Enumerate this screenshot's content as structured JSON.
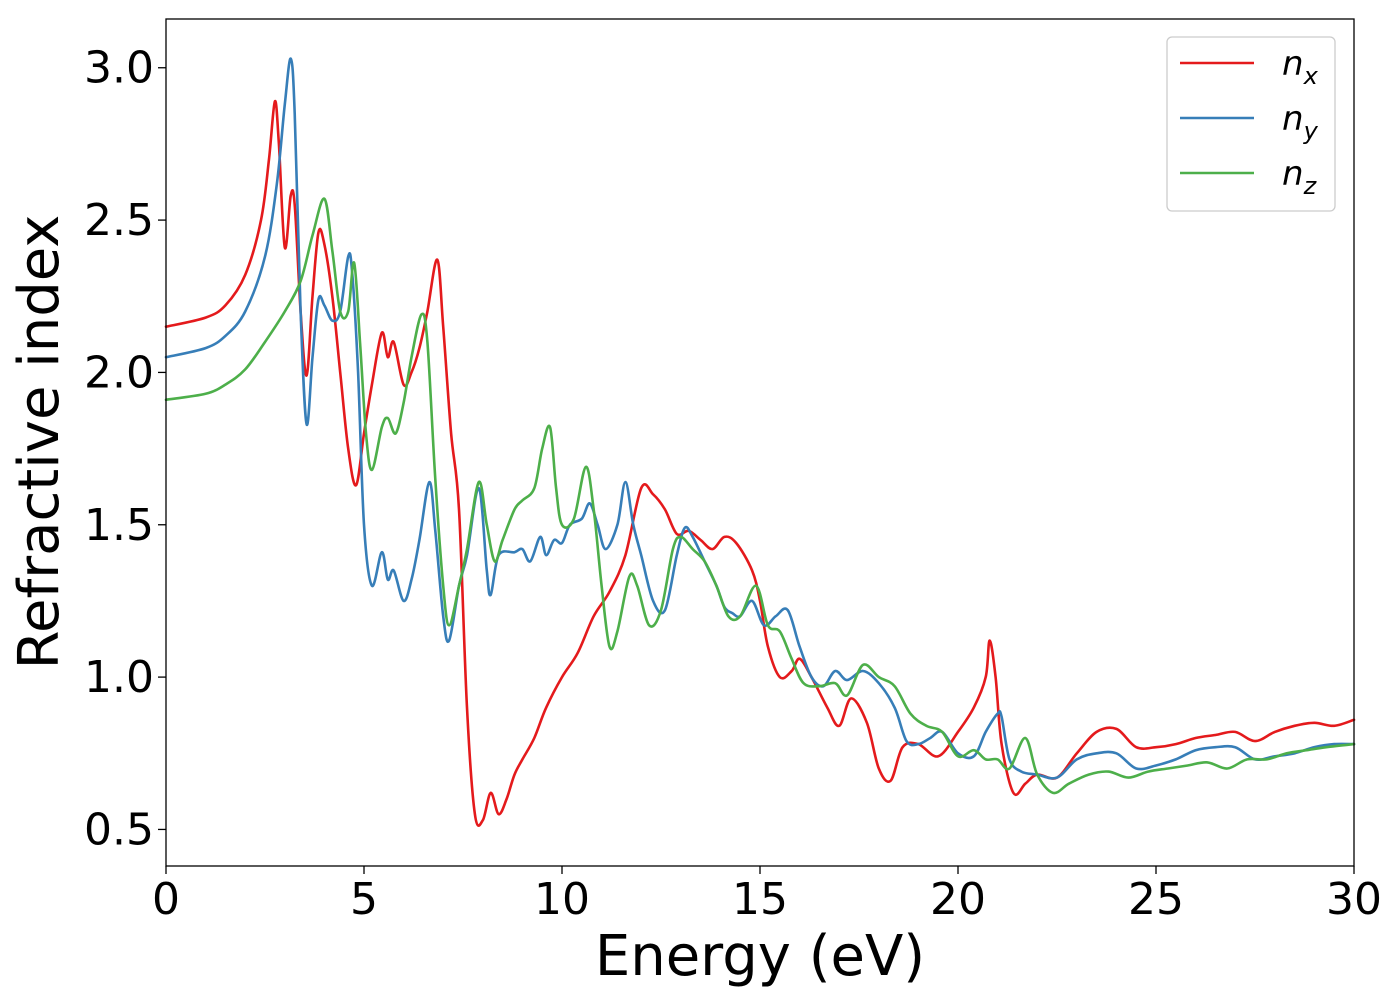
{
  "chart_data": {
    "type": "line",
    "title": "",
    "xlabel": "Energy (eV)",
    "ylabel": "Refractive index",
    "xlim": [
      0,
      30
    ],
    "ylim": [
      0.38,
      3.16
    ],
    "xticks": [
      0,
      5,
      10,
      15,
      20,
      25,
      30
    ],
    "yticks": [
      0.5,
      1.0,
      1.5,
      2.0,
      2.5,
      3.0
    ],
    "xtick_labels": [
      "0",
      "5",
      "10",
      "15",
      "20",
      "25",
      "30"
    ],
    "ytick_labels": [
      "0.5",
      "1.0",
      "1.5",
      "2.0",
      "2.5",
      "3.0"
    ],
    "grid": false,
    "legend_position": "top-right",
    "series": [
      {
        "name": "n",
        "subscript": "x",
        "color": "#e41a1c",
        "points": [
          [
            0,
            2.15
          ],
          [
            1.0,
            2.18
          ],
          [
            1.5,
            2.22
          ],
          [
            2.0,
            2.32
          ],
          [
            2.4,
            2.5
          ],
          [
            2.6,
            2.7
          ],
          [
            2.75,
            2.89
          ],
          [
            2.85,
            2.75
          ],
          [
            3.0,
            2.41
          ],
          [
            3.15,
            2.58
          ],
          [
            3.25,
            2.55
          ],
          [
            3.4,
            2.2
          ],
          [
            3.55,
            1.99
          ],
          [
            3.7,
            2.25
          ],
          [
            3.85,
            2.46
          ],
          [
            4.0,
            2.42
          ],
          [
            4.2,
            2.25
          ],
          [
            4.4,
            2.0
          ],
          [
            4.6,
            1.75
          ],
          [
            4.8,
            1.63
          ],
          [
            5.0,
            1.8
          ],
          [
            5.2,
            1.96
          ],
          [
            5.45,
            2.13
          ],
          [
            5.6,
            2.05
          ],
          [
            5.75,
            2.1
          ],
          [
            6.0,
            1.96
          ],
          [
            6.2,
            2.0
          ],
          [
            6.4,
            2.08
          ],
          [
            6.6,
            2.2
          ],
          [
            6.85,
            2.37
          ],
          [
            7.0,
            2.15
          ],
          [
            7.2,
            1.8
          ],
          [
            7.4,
            1.55
          ],
          [
            7.6,
            0.9
          ],
          [
            7.8,
            0.55
          ],
          [
            8.0,
            0.53
          ],
          [
            8.2,
            0.62
          ],
          [
            8.4,
            0.55
          ],
          [
            8.6,
            0.6
          ],
          [
            8.8,
            0.68
          ],
          [
            9.0,
            0.73
          ],
          [
            9.3,
            0.8
          ],
          [
            9.6,
            0.9
          ],
          [
            10.0,
            1.0
          ],
          [
            10.4,
            1.08
          ],
          [
            10.8,
            1.2
          ],
          [
            11.2,
            1.28
          ],
          [
            11.6,
            1.4
          ],
          [
            12.0,
            1.62
          ],
          [
            12.3,
            1.6
          ],
          [
            12.6,
            1.55
          ],
          [
            12.9,
            1.47
          ],
          [
            13.2,
            1.48
          ],
          [
            13.5,
            1.45
          ],
          [
            13.8,
            1.42
          ],
          [
            14.1,
            1.46
          ],
          [
            14.4,
            1.44
          ],
          [
            14.8,
            1.35
          ],
          [
            15.0,
            1.25
          ],
          [
            15.2,
            1.1
          ],
          [
            15.5,
            1.0
          ],
          [
            15.8,
            1.02
          ],
          [
            16.0,
            1.06
          ],
          [
            16.3,
            1.0
          ],
          [
            16.7,
            0.9
          ],
          [
            17.0,
            0.84
          ],
          [
            17.3,
            0.93
          ],
          [
            17.7,
            0.85
          ],
          [
            18.0,
            0.7
          ],
          [
            18.3,
            0.66
          ],
          [
            18.6,
            0.77
          ],
          [
            19.0,
            0.78
          ],
          [
            19.5,
            0.74
          ],
          [
            20.0,
            0.82
          ],
          [
            20.4,
            0.9
          ],
          [
            20.7,
            1.0
          ],
          [
            20.8,
            1.12
          ],
          [
            20.95,
            1.0
          ],
          [
            21.1,
            0.78
          ],
          [
            21.4,
            0.62
          ],
          [
            21.7,
            0.65
          ],
          [
            22.0,
            0.68
          ],
          [
            22.5,
            0.67
          ],
          [
            23.0,
            0.75
          ],
          [
            23.5,
            0.82
          ],
          [
            24.0,
            0.83
          ],
          [
            24.5,
            0.77
          ],
          [
            25.0,
            0.77
          ],
          [
            25.5,
            0.78
          ],
          [
            26.0,
            0.8
          ],
          [
            26.5,
            0.81
          ],
          [
            27.0,
            0.82
          ],
          [
            27.5,
            0.79
          ],
          [
            28.0,
            0.82
          ],
          [
            28.5,
            0.84
          ],
          [
            29.0,
            0.85
          ],
          [
            29.5,
            0.84
          ],
          [
            30,
            0.86
          ]
        ]
      },
      {
        "name": "n",
        "subscript": "y",
        "color": "#377eb8",
        "points": [
          [
            0,
            2.05
          ],
          [
            1.0,
            2.08
          ],
          [
            1.5,
            2.12
          ],
          [
            2.0,
            2.2
          ],
          [
            2.5,
            2.38
          ],
          [
            2.8,
            2.62
          ],
          [
            3.0,
            2.88
          ],
          [
            3.15,
            3.03
          ],
          [
            3.25,
            2.85
          ],
          [
            3.4,
            2.2
          ],
          [
            3.55,
            1.83
          ],
          [
            3.7,
            2.05
          ],
          [
            3.85,
            2.24
          ],
          [
            4.0,
            2.22
          ],
          [
            4.2,
            2.17
          ],
          [
            4.4,
            2.2
          ],
          [
            4.6,
            2.38
          ],
          [
            4.7,
            2.33
          ],
          [
            4.85,
            2.0
          ],
          [
            5.0,
            1.5
          ],
          [
            5.2,
            1.3
          ],
          [
            5.45,
            1.41
          ],
          [
            5.6,
            1.32
          ],
          [
            5.75,
            1.35
          ],
          [
            6.0,
            1.25
          ],
          [
            6.2,
            1.32
          ],
          [
            6.4,
            1.45
          ],
          [
            6.65,
            1.64
          ],
          [
            6.8,
            1.48
          ],
          [
            7.0,
            1.2
          ],
          [
            7.15,
            1.12
          ],
          [
            7.4,
            1.3
          ],
          [
            7.6,
            1.4
          ],
          [
            7.9,
            1.62
          ],
          [
            8.1,
            1.35
          ],
          [
            8.2,
            1.27
          ],
          [
            8.4,
            1.4
          ],
          [
            8.8,
            1.41
          ],
          [
            9.0,
            1.42
          ],
          [
            9.2,
            1.38
          ],
          [
            9.45,
            1.46
          ],
          [
            9.6,
            1.4
          ],
          [
            9.8,
            1.45
          ],
          [
            10.0,
            1.44
          ],
          [
            10.2,
            1.5
          ],
          [
            10.5,
            1.52
          ],
          [
            10.7,
            1.57
          ],
          [
            10.9,
            1.5
          ],
          [
            11.1,
            1.42
          ],
          [
            11.4,
            1.5
          ],
          [
            11.6,
            1.64
          ],
          [
            11.8,
            1.5
          ],
          [
            12.0,
            1.4
          ],
          [
            12.3,
            1.25
          ],
          [
            12.6,
            1.22
          ],
          [
            12.9,
            1.4
          ],
          [
            13.1,
            1.49
          ],
          [
            13.3,
            1.46
          ],
          [
            13.6,
            1.38
          ],
          [
            13.9,
            1.3
          ],
          [
            14.1,
            1.23
          ],
          [
            14.3,
            1.21
          ],
          [
            14.5,
            1.2
          ],
          [
            14.8,
            1.25
          ],
          [
            15.1,
            1.17
          ],
          [
            15.4,
            1.2
          ],
          [
            15.7,
            1.22
          ],
          [
            16.0,
            1.1
          ],
          [
            16.3,
            1.0
          ],
          [
            16.6,
            0.97
          ],
          [
            16.9,
            1.02
          ],
          [
            17.2,
            0.99
          ],
          [
            17.6,
            1.02
          ],
          [
            18.0,
            0.98
          ],
          [
            18.4,
            0.9
          ],
          [
            18.7,
            0.79
          ],
          [
            19.0,
            0.78
          ],
          [
            19.3,
            0.8
          ],
          [
            19.6,
            0.82
          ],
          [
            20.0,
            0.75
          ],
          [
            20.4,
            0.74
          ],
          [
            20.7,
            0.82
          ],
          [
            21.0,
            0.88
          ],
          [
            21.1,
            0.87
          ],
          [
            21.3,
            0.73
          ],
          [
            21.6,
            0.69
          ],
          [
            22.0,
            0.68
          ],
          [
            22.5,
            0.67
          ],
          [
            23.0,
            0.73
          ],
          [
            23.5,
            0.75
          ],
          [
            24.0,
            0.75
          ],
          [
            24.5,
            0.7
          ],
          [
            25.0,
            0.71
          ],
          [
            25.5,
            0.73
          ],
          [
            26.0,
            0.76
          ],
          [
            26.5,
            0.77
          ],
          [
            27.0,
            0.77
          ],
          [
            27.5,
            0.73
          ],
          [
            28.0,
            0.74
          ],
          [
            28.5,
            0.75
          ],
          [
            29.0,
            0.77
          ],
          [
            29.5,
            0.78
          ],
          [
            30,
            0.78
          ]
        ]
      },
      {
        "name": "n",
        "subscript": "z",
        "color": "#4daf4a",
        "points": [
          [
            0,
            1.91
          ],
          [
            1.0,
            1.93
          ],
          [
            1.5,
            1.96
          ],
          [
            2.0,
            2.01
          ],
          [
            2.5,
            2.1
          ],
          [
            3.0,
            2.2
          ],
          [
            3.4,
            2.3
          ],
          [
            3.7,
            2.45
          ],
          [
            4.0,
            2.57
          ],
          [
            4.2,
            2.4
          ],
          [
            4.4,
            2.2
          ],
          [
            4.6,
            2.2
          ],
          [
            4.75,
            2.36
          ],
          [
            4.9,
            2.1
          ],
          [
            5.05,
            1.8
          ],
          [
            5.2,
            1.68
          ],
          [
            5.45,
            1.82
          ],
          [
            5.6,
            1.85
          ],
          [
            5.8,
            1.8
          ],
          [
            6.0,
            1.9
          ],
          [
            6.2,
            2.05
          ],
          [
            6.45,
            2.19
          ],
          [
            6.6,
            2.1
          ],
          [
            6.8,
            1.65
          ],
          [
            7.0,
            1.3
          ],
          [
            7.15,
            1.17
          ],
          [
            7.4,
            1.3
          ],
          [
            7.6,
            1.42
          ],
          [
            7.9,
            1.64
          ],
          [
            8.1,
            1.5
          ],
          [
            8.3,
            1.38
          ],
          [
            8.5,
            1.45
          ],
          [
            8.8,
            1.55
          ],
          [
            9.0,
            1.58
          ],
          [
            9.3,
            1.62
          ],
          [
            9.5,
            1.75
          ],
          [
            9.7,
            1.82
          ],
          [
            9.85,
            1.62
          ],
          [
            10.0,
            1.5
          ],
          [
            10.3,
            1.52
          ],
          [
            10.6,
            1.69
          ],
          [
            10.8,
            1.55
          ],
          [
            11.0,
            1.3
          ],
          [
            11.2,
            1.1
          ],
          [
            11.4,
            1.15
          ],
          [
            11.7,
            1.33
          ],
          [
            11.9,
            1.3
          ],
          [
            12.2,
            1.17
          ],
          [
            12.5,
            1.22
          ],
          [
            12.8,
            1.42
          ],
          [
            13.0,
            1.46
          ],
          [
            13.3,
            1.42
          ],
          [
            13.6,
            1.38
          ],
          [
            13.9,
            1.3
          ],
          [
            14.2,
            1.2
          ],
          [
            14.5,
            1.2
          ],
          [
            14.9,
            1.3
          ],
          [
            15.2,
            1.17
          ],
          [
            15.5,
            1.15
          ],
          [
            15.8,
            1.06
          ],
          [
            16.1,
            0.98
          ],
          [
            16.5,
            0.97
          ],
          [
            16.9,
            0.98
          ],
          [
            17.2,
            0.94
          ],
          [
            17.6,
            1.04
          ],
          [
            18.0,
            1.0
          ],
          [
            18.4,
            0.97
          ],
          [
            18.8,
            0.88
          ],
          [
            19.2,
            0.84
          ],
          [
            19.6,
            0.82
          ],
          [
            20.0,
            0.74
          ],
          [
            20.4,
            0.76
          ],
          [
            20.7,
            0.73
          ],
          [
            21.0,
            0.73
          ],
          [
            21.3,
            0.7
          ],
          [
            21.7,
            0.8
          ],
          [
            22.0,
            0.68
          ],
          [
            22.4,
            0.62
          ],
          [
            22.8,
            0.65
          ],
          [
            23.3,
            0.68
          ],
          [
            23.8,
            0.69
          ],
          [
            24.3,
            0.67
          ],
          [
            24.8,
            0.69
          ],
          [
            25.3,
            0.7
          ],
          [
            25.8,
            0.71
          ],
          [
            26.3,
            0.72
          ],
          [
            26.8,
            0.7
          ],
          [
            27.3,
            0.73
          ],
          [
            27.8,
            0.73
          ],
          [
            28.3,
            0.75
          ],
          [
            28.8,
            0.76
          ],
          [
            29.3,
            0.77
          ],
          [
            30,
            0.78
          ]
        ]
      }
    ]
  }
}
